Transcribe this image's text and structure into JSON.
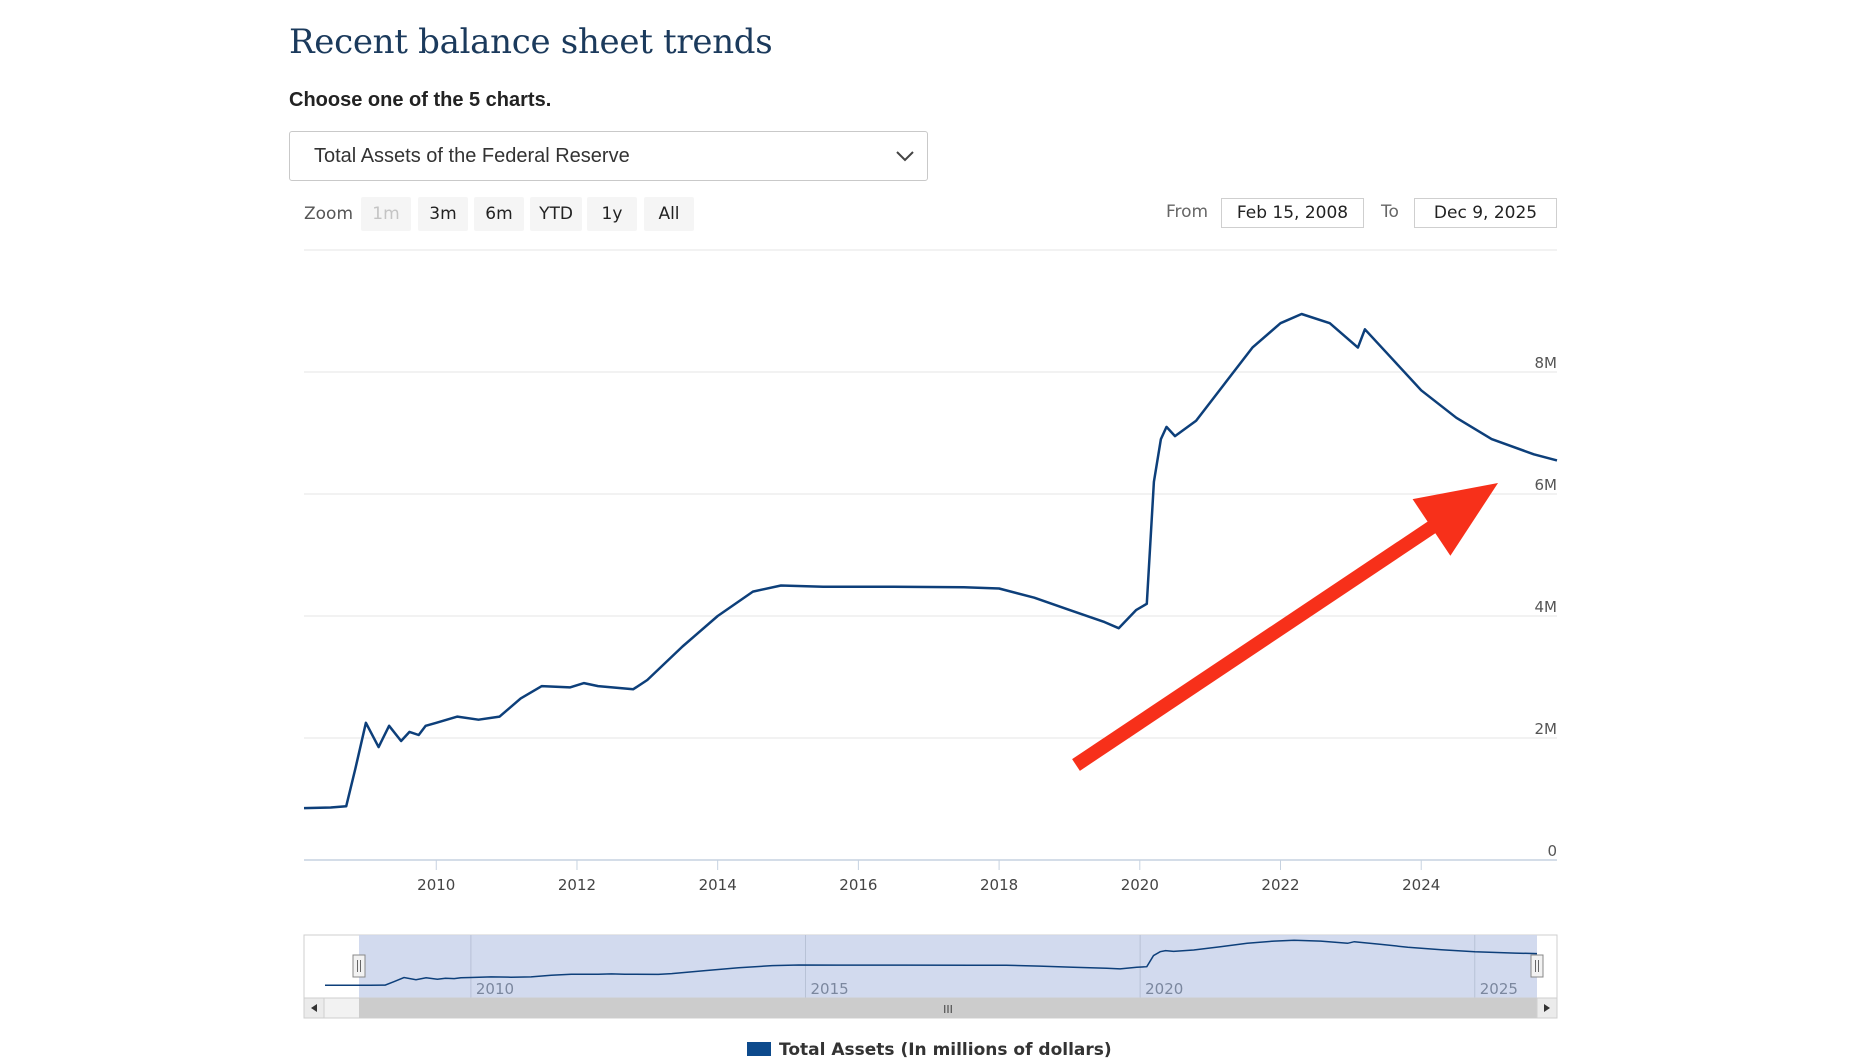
{
  "page": {
    "title": "Recent balance sheet trends",
    "subtitle": "Choose one of the 5 charts.",
    "chart_select": {
      "selected": "Total Assets of the Federal Reserve"
    }
  },
  "controls": {
    "zoom_label": "Zoom",
    "zoom_buttons": [
      {
        "label": "1m",
        "disabled": true
      },
      {
        "label": "3m",
        "disabled": false
      },
      {
        "label": "6m",
        "disabled": false
      },
      {
        "label": "YTD",
        "disabled": false
      },
      {
        "label": "1y",
        "disabled": false
      },
      {
        "label": "All",
        "disabled": false
      }
    ],
    "from_label": "From",
    "from_value": "Feb 15, 2008",
    "to_label": "To",
    "to_value": "Dec 9, 2025"
  },
  "colors": {
    "line": "#0d3f7a",
    "grid": "#e6e6e6",
    "navigator_fill": "#cdd6ec",
    "arrow": "#f7301a",
    "title": "#1b3a5c"
  },
  "chart_data": {
    "type": "line",
    "title": "Total Assets of the Federal Reserve",
    "series": [
      {
        "name": "Total Assets (In millions of dollars)",
        "x": [
          2008.12,
          2008.5,
          2008.72,
          2008.85,
          2009.0,
          2009.18,
          2009.33,
          2009.5,
          2009.62,
          2009.75,
          2009.85,
          2010.0,
          2010.3,
          2010.6,
          2010.9,
          2011.2,
          2011.5,
          2011.9,
          2012.1,
          2012.3,
          2012.8,
          2013.0,
          2013.5,
          2014.0,
          2014.5,
          2014.9,
          2015.5,
          2016.5,
          2017.5,
          2018.0,
          2018.5,
          2019.0,
          2019.5,
          2019.7,
          2019.95,
          2020.1,
          2020.2,
          2020.3,
          2020.38,
          2020.5,
          2020.8,
          2021.2,
          2021.6,
          2022.0,
          2022.3,
          2022.7,
          2023.1,
          2023.2,
          2023.6,
          2024.0,
          2024.5,
          2025.0,
          2025.6,
          2025.93
        ],
        "values": [
          850000,
          860000,
          880000,
          1500000,
          2250000,
          1850000,
          2200000,
          1950000,
          2100000,
          2050000,
          2200000,
          2250000,
          2350000,
          2300000,
          2350000,
          2650000,
          2850000,
          2830000,
          2900000,
          2850000,
          2800000,
          2950000,
          3500000,
          4000000,
          4400000,
          4500000,
          4480000,
          4480000,
          4470000,
          4450000,
          4300000,
          4100000,
          3900000,
          3800000,
          4100000,
          4200000,
          6200000,
          6900000,
          7100000,
          6950000,
          7200000,
          7800000,
          8400000,
          8800000,
          8950000,
          8800000,
          8400000,
          8700000,
          8200000,
          7700000,
          7250000,
          6900000,
          6650000,
          6550000
        ]
      }
    ],
    "xlabel": "",
    "ylabel": "",
    "xlim": [
      2008.12,
      2025.93
    ],
    "ylim": [
      0,
      10000000
    ],
    "x_ticks": [
      2010,
      2012,
      2014,
      2016,
      2018,
      2020,
      2022,
      2024
    ],
    "x_tick_labels": [
      "2010",
      "2012",
      "2014",
      "2016",
      "2018",
      "2020",
      "2022",
      "2024"
    ],
    "y_ticks": [
      0,
      2000000,
      4000000,
      6000000,
      8000000
    ],
    "y_tick_labels": [
      "0",
      "2M",
      "4M",
      "6M",
      "8M"
    ],
    "grid": true,
    "legend": "bottom-center",
    "annotation": "red arrow pointing up-right toward the 6M level",
    "navigator": {
      "x_ticks": [
        2010,
        2015,
        2020,
        2025
      ],
      "x_tick_labels": [
        "2010",
        "2015",
        "2020",
        "2025"
      ],
      "scroll_center_glyph": "III"
    }
  }
}
